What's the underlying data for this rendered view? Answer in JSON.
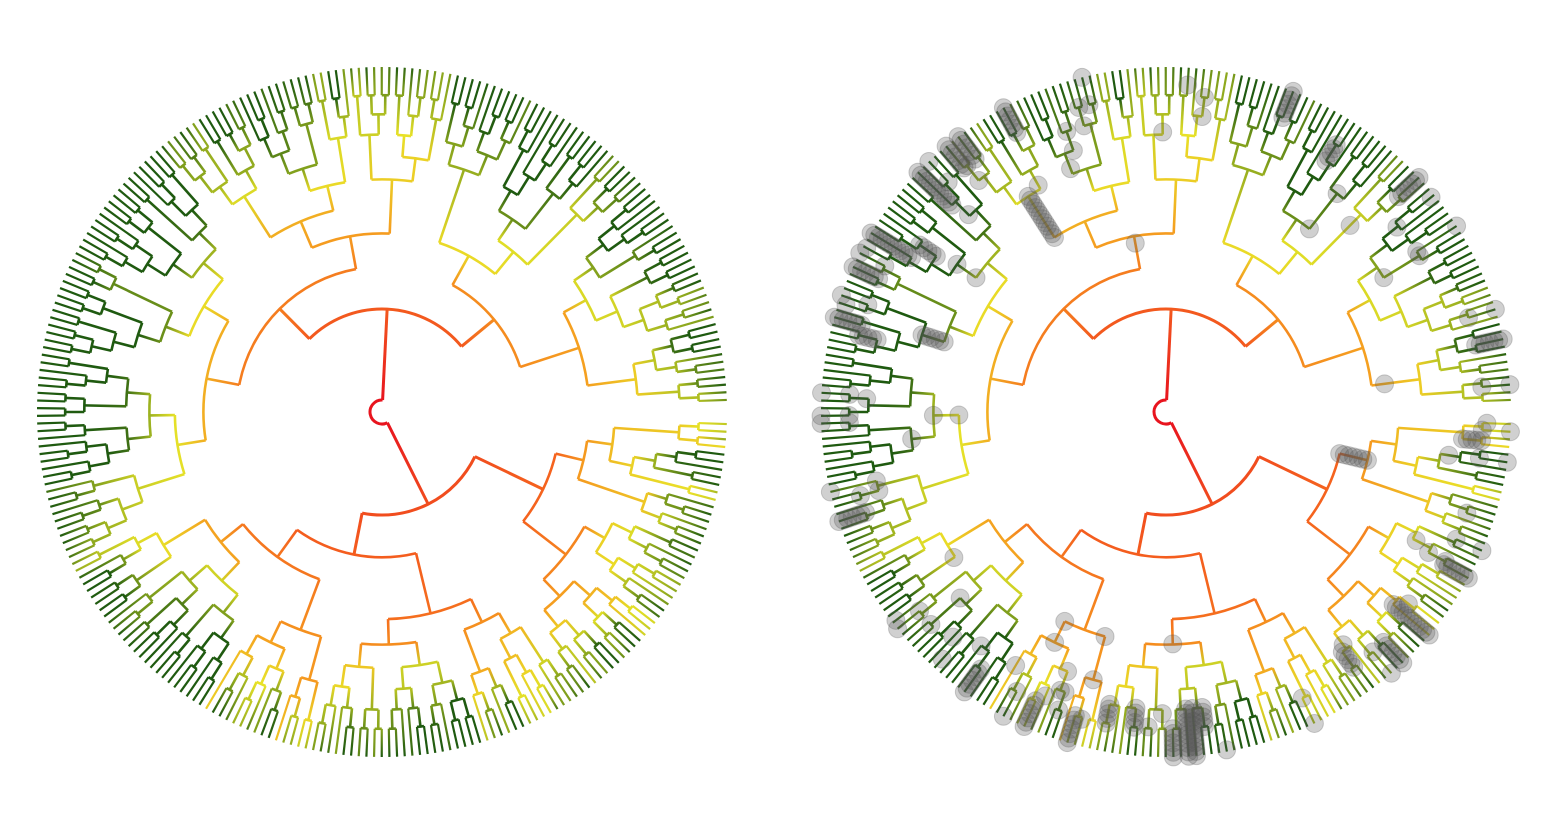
{
  "figure": {
    "panels": [
      {
        "id": "left",
        "type": "circular-phylogenetic-tree",
        "overlay_points": false
      },
      {
        "id": "right",
        "type": "circular-phylogenetic-tree",
        "overlay_points": true
      }
    ],
    "colors": {
      "root": "#e8141e",
      "low": "#f5641e",
      "mid": "#f5a020",
      "high": "#e8e228",
      "olive": "#8aa61e",
      "tip_dark": "#1f5a10",
      "overlay_points": "#555555"
    },
    "color_scale_order": [
      "root",
      "low",
      "mid",
      "high",
      "olive",
      "tip_dark"
    ],
    "overlay_point_alpha": 0.28,
    "rng_seed": 17
  }
}
